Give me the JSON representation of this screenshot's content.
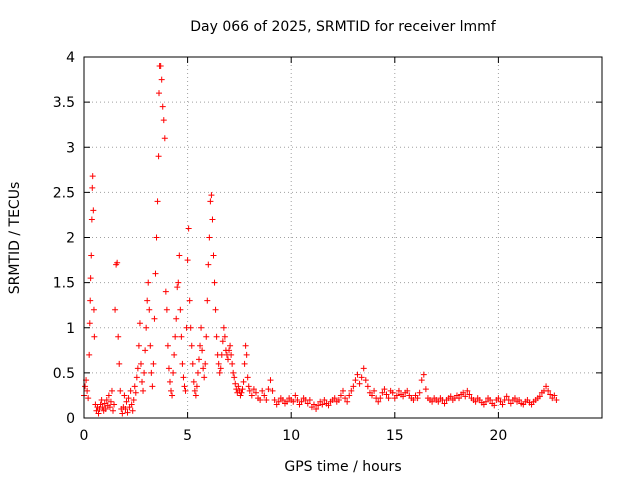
{
  "chart_data": {
    "type": "scatter",
    "title": "Day 066 of 2025, SRMTID for receiver lmmf",
    "xlabel": "GPS time / hours",
    "ylabel": "SRMTID / TECUs",
    "xlim": [
      0,
      25
    ],
    "ylim": [
      0,
      4
    ],
    "xticks": [
      0,
      5,
      10,
      15,
      20
    ],
    "yticks": [
      0,
      0.5,
      1,
      1.5,
      2,
      2.5,
      3,
      3.5,
      4
    ],
    "xtick_labels": [
      "0",
      "5",
      "10",
      "15",
      "20"
    ],
    "ytick_labels": [
      "0",
      "0.5",
      "1",
      "1.5",
      "2",
      "2.5",
      "3",
      "3.5",
      "4"
    ],
    "marker": "+",
    "color": "#ff0000",
    "grid": true,
    "series": [
      {
        "name": "SRMTID",
        "points": [
          [
            0.0,
            0.25
          ],
          [
            0.05,
            0.35
          ],
          [
            0.1,
            0.42
          ],
          [
            0.15,
            0.3
          ],
          [
            0.2,
            0.22
          ],
          [
            0.25,
            0.7
          ],
          [
            0.28,
            1.05
          ],
          [
            0.3,
            1.3
          ],
          [
            0.32,
            1.55
          ],
          [
            0.35,
            1.8
          ],
          [
            0.38,
            2.2
          ],
          [
            0.4,
            2.55
          ],
          [
            0.42,
            2.68
          ],
          [
            0.45,
            2.3
          ],
          [
            0.48,
            1.2
          ],
          [
            0.5,
            0.9
          ],
          [
            0.55,
            0.15
          ],
          [
            0.6,
            0.08
          ],
          [
            0.65,
            0.12
          ],
          [
            0.7,
            0.05
          ],
          [
            0.75,
            0.1
          ],
          [
            0.8,
            0.15
          ],
          [
            0.85,
            0.2
          ],
          [
            0.9,
            0.12
          ],
          [
            0.95,
            0.08
          ],
          [
            1.0,
            0.16
          ],
          [
            1.05,
            0.1
          ],
          [
            1.1,
            0.2
          ],
          [
            1.15,
            0.14
          ],
          [
            1.2,
            0.25
          ],
          [
            1.25,
            0.12
          ],
          [
            1.3,
            0.18
          ],
          [
            1.35,
            0.3
          ],
          [
            1.4,
            0.08
          ],
          [
            1.45,
            0.15
          ],
          [
            1.5,
            1.2
          ],
          [
            1.55,
            1.7
          ],
          [
            1.6,
            1.72
          ],
          [
            1.65,
            0.9
          ],
          [
            1.7,
            0.6
          ],
          [
            1.75,
            0.3
          ],
          [
            1.8,
            0.1
          ],
          [
            1.85,
            0.05
          ],
          [
            1.9,
            0.12
          ],
          [
            1.95,
            0.25
          ],
          [
            2.0,
            0.1
          ],
          [
            2.05,
            0.18
          ],
          [
            2.1,
            0.06
          ],
          [
            2.15,
            0.22
          ],
          [
            2.2,
            0.12
          ],
          [
            2.25,
            0.3
          ],
          [
            2.3,
            0.15
          ],
          [
            2.35,
            0.08
          ],
          [
            2.4,
            0.2
          ],
          [
            2.45,
            0.35
          ],
          [
            2.5,
            0.28
          ],
          [
            2.55,
            0.45
          ],
          [
            2.6,
            0.55
          ],
          [
            2.65,
            0.8
          ],
          [
            2.7,
            1.05
          ],
          [
            2.75,
            0.6
          ],
          [
            2.8,
            0.4
          ],
          [
            2.85,
            0.3
          ],
          [
            2.9,
            0.5
          ],
          [
            2.95,
            0.75
          ],
          [
            3.0,
            1.0
          ],
          [
            3.05,
            1.3
          ],
          [
            3.1,
            1.5
          ],
          [
            3.15,
            1.2
          ],
          [
            3.2,
            0.8
          ],
          [
            3.25,
            0.5
          ],
          [
            3.3,
            0.35
          ],
          [
            3.35,
            0.6
          ],
          [
            3.4,
            1.1
          ],
          [
            3.45,
            1.6
          ],
          [
            3.5,
            2.0
          ],
          [
            3.55,
            2.4
          ],
          [
            3.6,
            2.9
          ],
          [
            3.62,
            3.6
          ],
          [
            3.65,
            3.9
          ],
          [
            3.7,
            3.9
          ],
          [
            3.75,
            3.75
          ],
          [
            3.8,
            3.45
          ],
          [
            3.85,
            3.3
          ],
          [
            3.9,
            3.1
          ],
          [
            3.95,
            1.4
          ],
          [
            4.0,
            1.2
          ],
          [
            4.05,
            0.8
          ],
          [
            4.1,
            0.55
          ],
          [
            4.15,
            0.4
          ],
          [
            4.2,
            0.3
          ],
          [
            4.25,
            0.25
          ],
          [
            4.3,
            0.5
          ],
          [
            4.35,
            0.7
          ],
          [
            4.4,
            0.9
          ],
          [
            4.45,
            1.1
          ],
          [
            4.5,
            1.45
          ],
          [
            4.55,
            1.5
          ],
          [
            4.6,
            1.8
          ],
          [
            4.65,
            1.2
          ],
          [
            4.7,
            0.9
          ],
          [
            4.75,
            0.6
          ],
          [
            4.8,
            0.45
          ],
          [
            4.85,
            0.35
          ],
          [
            4.9,
            0.3
          ],
          [
            4.95,
            1.0
          ],
          [
            5.0,
            1.75
          ],
          [
            5.05,
            2.1
          ],
          [
            5.1,
            1.3
          ],
          [
            5.15,
            1.0
          ],
          [
            5.2,
            0.8
          ],
          [
            5.25,
            0.6
          ],
          [
            5.3,
            0.4
          ],
          [
            5.35,
            0.3
          ],
          [
            5.4,
            0.25
          ],
          [
            5.45,
            0.35
          ],
          [
            5.5,
            0.5
          ],
          [
            5.55,
            0.65
          ],
          [
            5.6,
            0.8
          ],
          [
            5.65,
            1.0
          ],
          [
            5.7,
            0.75
          ],
          [
            5.75,
            0.55
          ],
          [
            5.8,
            0.45
          ],
          [
            5.85,
            0.6
          ],
          [
            5.9,
            0.9
          ],
          [
            5.95,
            1.3
          ],
          [
            6.0,
            1.7
          ],
          [
            6.05,
            2.0
          ],
          [
            6.1,
            2.4
          ],
          [
            6.15,
            2.47
          ],
          [
            6.2,
            2.2
          ],
          [
            6.25,
            1.8
          ],
          [
            6.3,
            1.5
          ],
          [
            6.35,
            1.2
          ],
          [
            6.4,
            0.9
          ],
          [
            6.45,
            0.7
          ],
          [
            6.5,
            0.6
          ],
          [
            6.55,
            0.5
          ],
          [
            6.6,
            0.55
          ],
          [
            6.65,
            0.7
          ],
          [
            6.7,
            0.85
          ],
          [
            6.75,
            1.0
          ],
          [
            6.8,
            0.9
          ],
          [
            6.85,
            0.75
          ],
          [
            6.9,
            0.7
          ],
          [
            6.95,
            0.65
          ],
          [
            7.0,
            0.75
          ],
          [
            7.05,
            0.8
          ],
          [
            7.1,
            0.7
          ],
          [
            7.15,
            0.6
          ],
          [
            7.2,
            0.5
          ],
          [
            7.25,
            0.45
          ],
          [
            7.3,
            0.38
          ],
          [
            7.35,
            0.32
          ],
          [
            7.4,
            0.28
          ],
          [
            7.45,
            0.35
          ],
          [
            7.5,
            0.3
          ],
          [
            7.55,
            0.25
          ],
          [
            7.6,
            0.28
          ],
          [
            7.65,
            0.32
          ],
          [
            7.7,
            0.4
          ],
          [
            7.75,
            0.6
          ],
          [
            7.8,
            0.8
          ],
          [
            7.85,
            0.7
          ],
          [
            7.9,
            0.45
          ],
          [
            7.95,
            0.35
          ],
          [
            8.0,
            0.3
          ],
          [
            8.1,
            0.25
          ],
          [
            8.2,
            0.32
          ],
          [
            8.3,
            0.28
          ],
          [
            8.4,
            0.22
          ],
          [
            8.5,
            0.2
          ],
          [
            8.6,
            0.3
          ],
          [
            8.7,
            0.25
          ],
          [
            8.8,
            0.2
          ],
          [
            8.9,
            0.32
          ],
          [
            9.0,
            0.42
          ],
          [
            9.1,
            0.3
          ],
          [
            9.2,
            0.2
          ],
          [
            9.3,
            0.15
          ],
          [
            9.4,
            0.18
          ],
          [
            9.5,
            0.22
          ],
          [
            9.6,
            0.2
          ],
          [
            9.7,
            0.16
          ],
          [
            9.8,
            0.18
          ],
          [
            9.9,
            0.22
          ],
          [
            10.0,
            0.2
          ],
          [
            10.1,
            0.18
          ],
          [
            10.2,
            0.25
          ],
          [
            10.3,
            0.2
          ],
          [
            10.4,
            0.15
          ],
          [
            10.5,
            0.18
          ],
          [
            10.6,
            0.22
          ],
          [
            10.7,
            0.2
          ],
          [
            10.8,
            0.16
          ],
          [
            10.9,
            0.2
          ],
          [
            11.0,
            0.12
          ],
          [
            11.1,
            0.15
          ],
          [
            11.2,
            0.1
          ],
          [
            11.3,
            0.14
          ],
          [
            11.4,
            0.18
          ],
          [
            11.5,
            0.15
          ],
          [
            11.6,
            0.2
          ],
          [
            11.7,
            0.16
          ],
          [
            11.8,
            0.14
          ],
          [
            11.9,
            0.18
          ],
          [
            12.0,
            0.2
          ],
          [
            12.1,
            0.22
          ],
          [
            12.2,
            0.18
          ],
          [
            12.3,
            0.2
          ],
          [
            12.4,
            0.25
          ],
          [
            12.5,
            0.3
          ],
          [
            12.6,
            0.22
          ],
          [
            12.7,
            0.18
          ],
          [
            12.8,
            0.25
          ],
          [
            12.9,
            0.3
          ],
          [
            13.0,
            0.35
          ],
          [
            13.1,
            0.42
          ],
          [
            13.2,
            0.48
          ],
          [
            13.3,
            0.38
          ],
          [
            13.4,
            0.45
          ],
          [
            13.5,
            0.55
          ],
          [
            13.6,
            0.42
          ],
          [
            13.7,
            0.35
          ],
          [
            13.8,
            0.28
          ],
          [
            13.9,
            0.25
          ],
          [
            14.0,
            0.3
          ],
          [
            14.1,
            0.22
          ],
          [
            14.2,
            0.18
          ],
          [
            14.3,
            0.22
          ],
          [
            14.4,
            0.28
          ],
          [
            14.5,
            0.32
          ],
          [
            14.6,
            0.26
          ],
          [
            14.7,
            0.22
          ],
          [
            14.8,
            0.3
          ],
          [
            14.9,
            0.28
          ],
          [
            15.0,
            0.22
          ],
          [
            15.1,
            0.25
          ],
          [
            15.2,
            0.3
          ],
          [
            15.3,
            0.26
          ],
          [
            15.4,
            0.24
          ],
          [
            15.5,
            0.28
          ],
          [
            15.6,
            0.3
          ],
          [
            15.7,
            0.25
          ],
          [
            15.8,
            0.22
          ],
          [
            15.9,
            0.2
          ],
          [
            16.0,
            0.25
          ],
          [
            16.1,
            0.22
          ],
          [
            16.2,
            0.28
          ],
          [
            16.3,
            0.42
          ],
          [
            16.4,
            0.48
          ],
          [
            16.5,
            0.32
          ],
          [
            16.6,
            0.22
          ],
          [
            16.7,
            0.2
          ],
          [
            16.8,
            0.18
          ],
          [
            16.9,
            0.22
          ],
          [
            17.0,
            0.2
          ],
          [
            17.1,
            0.18
          ],
          [
            17.2,
            0.22
          ],
          [
            17.3,
            0.2
          ],
          [
            17.4,
            0.16
          ],
          [
            17.5,
            0.2
          ],
          [
            17.6,
            0.22
          ],
          [
            17.7,
            0.24
          ],
          [
            17.8,
            0.2
          ],
          [
            17.9,
            0.22
          ],
          [
            18.0,
            0.25
          ],
          [
            18.1,
            0.22
          ],
          [
            18.2,
            0.26
          ],
          [
            18.3,
            0.28
          ],
          [
            18.4,
            0.24
          ],
          [
            18.5,
            0.3
          ],
          [
            18.6,
            0.26
          ],
          [
            18.7,
            0.22
          ],
          [
            18.8,
            0.2
          ],
          [
            18.9,
            0.18
          ],
          [
            19.0,
            0.22
          ],
          [
            19.1,
            0.2
          ],
          [
            19.2,
            0.17
          ],
          [
            19.3,
            0.15
          ],
          [
            19.4,
            0.18
          ],
          [
            19.5,
            0.22
          ],
          [
            19.6,
            0.2
          ],
          [
            19.7,
            0.16
          ],
          [
            19.8,
            0.14
          ],
          [
            19.9,
            0.2
          ],
          [
            20.0,
            0.22
          ],
          [
            20.1,
            0.18
          ],
          [
            20.2,
            0.15
          ],
          [
            20.3,
            0.2
          ],
          [
            20.4,
            0.24
          ],
          [
            20.5,
            0.2
          ],
          [
            20.6,
            0.16
          ],
          [
            20.7,
            0.2
          ],
          [
            20.8,
            0.22
          ],
          [
            20.9,
            0.18
          ],
          [
            21.0,
            0.2
          ],
          [
            21.1,
            0.16
          ],
          [
            21.2,
            0.15
          ],
          [
            21.3,
            0.18
          ],
          [
            21.4,
            0.2
          ],
          [
            21.5,
            0.17
          ],
          [
            21.6,
            0.15
          ],
          [
            21.7,
            0.18
          ],
          [
            21.8,
            0.2
          ],
          [
            21.9,
            0.22
          ],
          [
            22.0,
            0.24
          ],
          [
            22.1,
            0.28
          ],
          [
            22.2,
            0.3
          ],
          [
            22.3,
            0.35
          ],
          [
            22.4,
            0.3
          ],
          [
            22.5,
            0.26
          ],
          [
            22.6,
            0.22
          ],
          [
            22.7,
            0.25
          ],
          [
            22.8,
            0.2
          ]
        ]
      }
    ]
  }
}
